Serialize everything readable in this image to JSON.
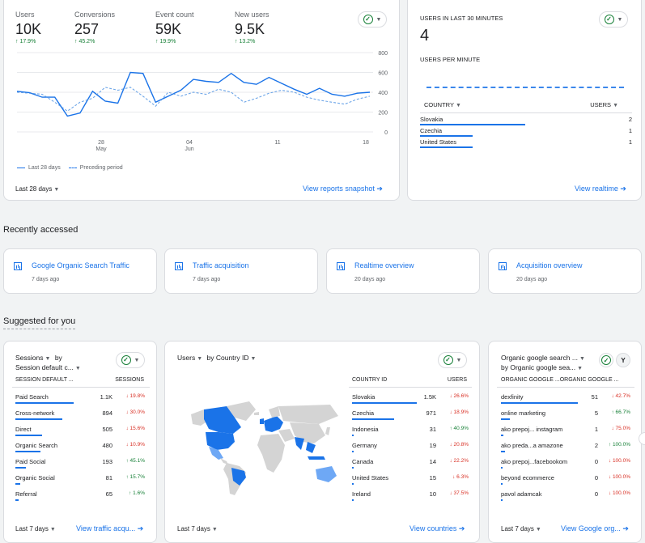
{
  "overview": {
    "metrics": [
      {
        "label": "Users",
        "value": "10K",
        "delta": "↑ 17.9%"
      },
      {
        "label": "Conversions",
        "value": "257",
        "delta": "↑ 45.2%"
      },
      {
        "label": "Event count",
        "value": "59K",
        "delta": "↑ 19.9%"
      },
      {
        "label": "New users",
        "value": "9.5K",
        "delta": "↑ 13.2%"
      }
    ],
    "y_ticks": [
      "800",
      "600",
      "400",
      "200",
      "0"
    ],
    "x_ticks": [
      {
        "day": "28",
        "month": "May"
      },
      {
        "day": "04",
        "month": "Jun"
      },
      {
        "day": "11",
        "month": ""
      },
      {
        "day": "18",
        "month": ""
      }
    ],
    "legend_current": "Last 28 days",
    "legend_previous": "Preceding period",
    "date_range": "Last 28 days",
    "link": "View reports snapshot"
  },
  "chart_data": {
    "type": "line",
    "ylim": [
      0,
      800
    ],
    "x": [
      "May 21",
      "May 22",
      "May 23",
      "May 24",
      "May 25",
      "May 26",
      "May 27",
      "May 28",
      "May 29",
      "May 30",
      "May 31",
      "Jun 1",
      "Jun 2",
      "Jun 3",
      "Jun 4",
      "Jun 5",
      "Jun 6",
      "Jun 7",
      "Jun 8",
      "Jun 9",
      "Jun 10",
      "Jun 11",
      "Jun 12",
      "Jun 13",
      "Jun 14",
      "Jun 15",
      "Jun 16",
      "Jun 17",
      "Jun 18"
    ],
    "y_ticks": [
      0,
      200,
      400,
      600,
      800
    ],
    "series": [
      {
        "name": "Last 28 days",
        "values": [
          410,
          395,
          350,
          350,
          160,
          190,
          410,
          310,
          290,
          600,
          590,
          300,
          360,
          420,
          530,
          510,
          500,
          590,
          500,
          480,
          550,
          490,
          430,
          380,
          440,
          380,
          360,
          390,
          400
        ]
      },
      {
        "name": "Preceding period",
        "values": [
          400,
          390,
          380,
          300,
          210,
          300,
          340,
          450,
          420,
          450,
          360,
          260,
          400,
          360,
          400,
          380,
          430,
          400,
          300,
          340,
          390,
          420,
          400,
          350,
          320,
          300,
          280,
          330,
          360
        ]
      }
    ]
  },
  "realtime": {
    "title": "USERS IN LAST 30 MINUTES",
    "value": "4",
    "per_minute_label": "USERS PER MINUTE",
    "col_country": "COUNTRY",
    "col_users": "USERS",
    "rows": [
      {
        "country": "Slovakia",
        "users": "2",
        "share": 1.0
      },
      {
        "country": "Czechia",
        "users": "1",
        "share": 0.5
      },
      {
        "country": "United States",
        "users": "1",
        "share": 0.5
      }
    ],
    "link": "View realtime"
  },
  "recent": {
    "heading": "Recently accessed",
    "items": [
      {
        "title": "Google Organic Search Traffic",
        "time": "7 days ago"
      },
      {
        "title": "Traffic acquisition",
        "time": "7 days ago"
      },
      {
        "title": "Realtime overview",
        "time": "20 days ago"
      },
      {
        "title": "Acquisition overview",
        "time": "20 days ago"
      }
    ]
  },
  "suggested": {
    "heading": "Suggested for you",
    "sessions": {
      "title_a": "Sessions",
      "title_b": "by",
      "subtitle": "Session default c...",
      "col_a": "SESSION DEFAULT ...",
      "col_b": "SESSIONS",
      "rows": [
        {
          "label": "Paid Search",
          "value": "1.1K",
          "delta": "↓ 19.8%",
          "dir": "neg",
          "share": 0.9
        },
        {
          "label": "Cross-network",
          "value": "894",
          "delta": "↓ 30.0%",
          "dir": "neg",
          "share": 0.72
        },
        {
          "label": "Direct",
          "value": "505",
          "delta": "↓ 15.6%",
          "dir": "neg",
          "share": 0.41
        },
        {
          "label": "Organic Search",
          "value": "480",
          "delta": "↓ 10.9%",
          "dir": "neg",
          "share": 0.39
        },
        {
          "label": "Paid Social",
          "value": "193",
          "delta": "↑ 45.1%",
          "dir": "pos",
          "share": 0.16
        },
        {
          "label": "Organic Social",
          "value": "81",
          "delta": "↑ 15.7%",
          "dir": "pos",
          "share": 0.07
        },
        {
          "label": "Referral",
          "value": "65",
          "delta": "↑ 1.6%",
          "dir": "pos",
          "share": 0.05
        }
      ],
      "date_range": "Last 7 days",
      "link": "View traffic acqu..."
    },
    "countries": {
      "title_a": "Users",
      "title_b": "by Country ID",
      "col_a": "COUNTRY ID",
      "col_b": "USERS",
      "rows": [
        {
          "label": "Slovakia",
          "value": "1.5K",
          "delta": "↓ 26.6%",
          "dir": "neg",
          "share": 1.0
        },
        {
          "label": "Czechia",
          "value": "971",
          "delta": "↓ 18.9%",
          "dir": "neg",
          "share": 0.65
        },
        {
          "label": "Indonesia",
          "value": "31",
          "delta": "↑ 40.9%",
          "dir": "pos",
          "share": 0.03
        },
        {
          "label": "Germany",
          "value": "19",
          "delta": "↓ 20.8%",
          "dir": "neg",
          "share": 0.02
        },
        {
          "label": "Canada",
          "value": "14",
          "delta": "↓ 22.2%",
          "dir": "neg",
          "share": 0.02
        },
        {
          "label": "United States",
          "value": "15",
          "delta": "↓ 6.3%",
          "dir": "neg",
          "share": 0.02
        },
        {
          "label": "Ireland",
          "value": "10",
          "delta": "↓ 37.5%",
          "dir": "neg",
          "share": 0.01
        }
      ],
      "date_range": "Last 7 days",
      "link": "View countries"
    },
    "organic": {
      "title_a": "Organic google search ...",
      "subtitle": "by Organic google sea...",
      "col_a": "ORGANIC GOOGLE ...ORGANIC GOOGLE ...",
      "rows": [
        {
          "label": "dexfinity",
          "value": "51",
          "delta": "↓ 42.7%",
          "dir": "neg",
          "share": 1.0
        },
        {
          "label": "online marketing",
          "value": "5",
          "delta": "↑ 66.7%",
          "dir": "pos",
          "share": 0.12
        },
        {
          "label": "ako prepoj... instagram",
          "value": "1",
          "delta": "↓ 75.0%",
          "dir": "neg",
          "share": 0.03
        },
        {
          "label": "ako preda...a amazone",
          "value": "2",
          "delta": "↑ 100.0%",
          "dir": "pos",
          "share": 0.05
        },
        {
          "label": "ako prepoj...facebookom",
          "value": "0",
          "delta": "↓ 100.0%",
          "dir": "neg",
          "share": 0.0
        },
        {
          "label": "beyond ecommerce",
          "value": "0",
          "delta": "↓ 100.0%",
          "dir": "neg",
          "share": 0.0
        },
        {
          "label": "pavol adamcak",
          "value": "0",
          "delta": "↓ 100.0%",
          "dir": "neg",
          "share": 0.0
        }
      ],
      "filter_icon_letter": "Y",
      "date_range": "Last 7 days",
      "link": "View Google org..."
    }
  },
  "colors": {
    "accent": "#1a73e8",
    "positive": "#188038",
    "negative": "#d93025",
    "map_high": "#1a73e8",
    "map_mid": "#6ea8f5",
    "map_none": "#d4d4d4"
  }
}
